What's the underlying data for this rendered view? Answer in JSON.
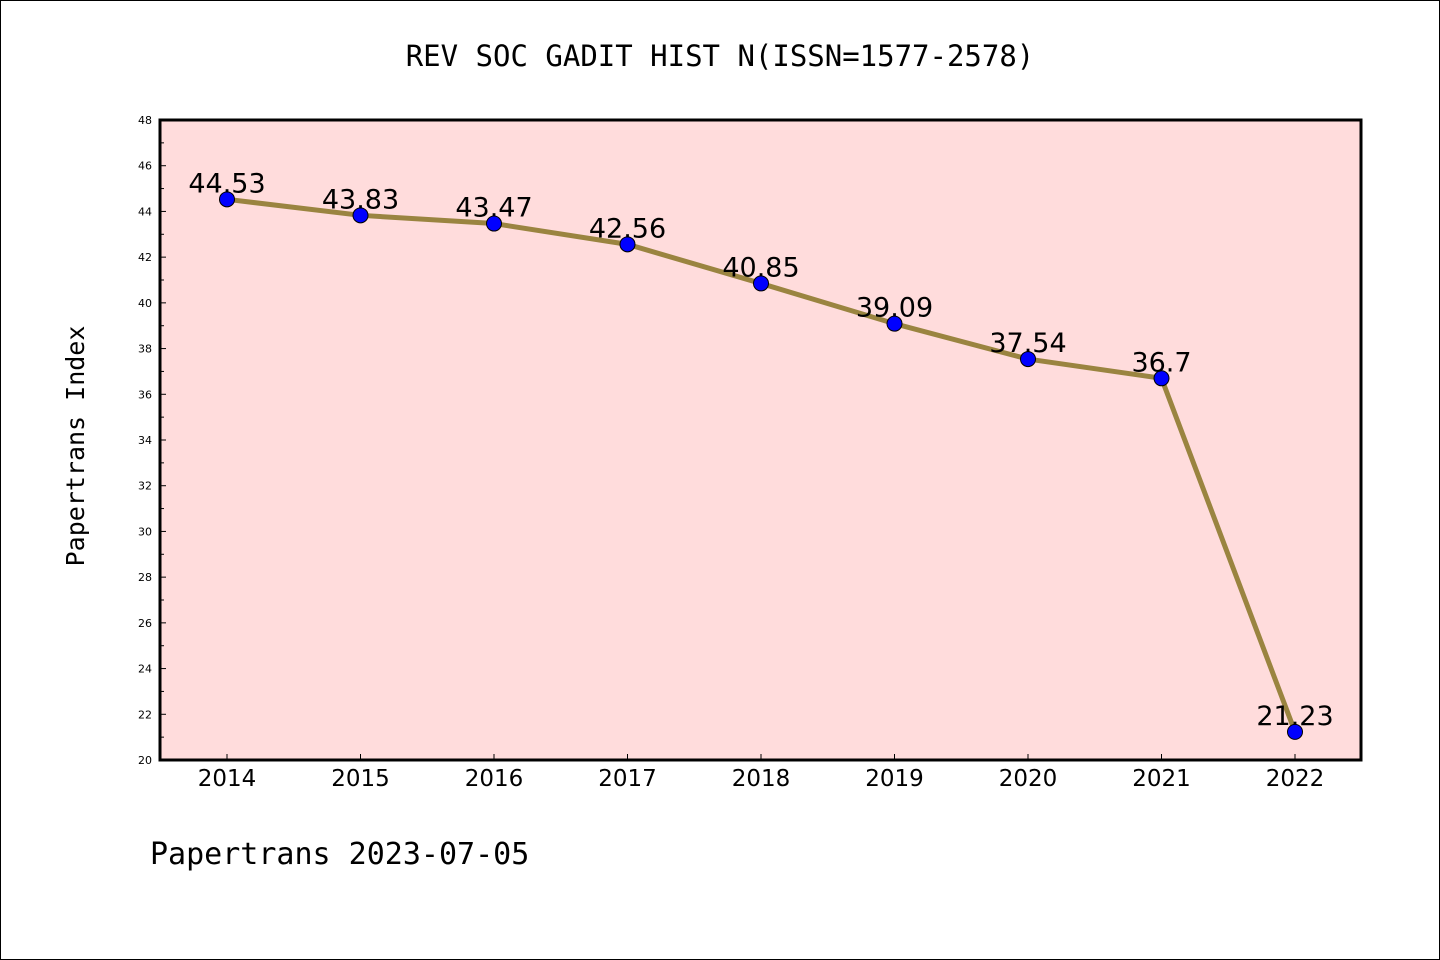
{
  "chart_data": {
    "type": "line",
    "title": "REV SOC GADIT HIST N(ISSN=1577-2578)",
    "xlabel": "",
    "ylabel": "Papertrans Index",
    "footer": "Papertrans 2023-07-05",
    "categories": [
      "2014",
      "2015",
      "2016",
      "2017",
      "2018",
      "2019",
      "2020",
      "2021",
      "2022"
    ],
    "values": [
      44.53,
      43.83,
      43.47,
      42.56,
      40.85,
      39.09,
      37.54,
      36.7,
      21.23
    ],
    "data_labels": [
      "44.53",
      "43.83",
      "43.47",
      "42.56",
      "40.85",
      "39.09",
      "37.54",
      "36.7",
      "21.23"
    ],
    "ylim": [
      20,
      48
    ],
    "yticks": [
      "20",
      "22",
      "24",
      "26",
      "28",
      "30",
      "32",
      "34",
      "36",
      "38",
      "40",
      "42",
      "44",
      "46",
      "48"
    ],
    "grid": false,
    "legend": "none",
    "colors": {
      "plot_background": "#ffdcdc",
      "line": "#9a8440",
      "marker": "#0000ff"
    }
  }
}
